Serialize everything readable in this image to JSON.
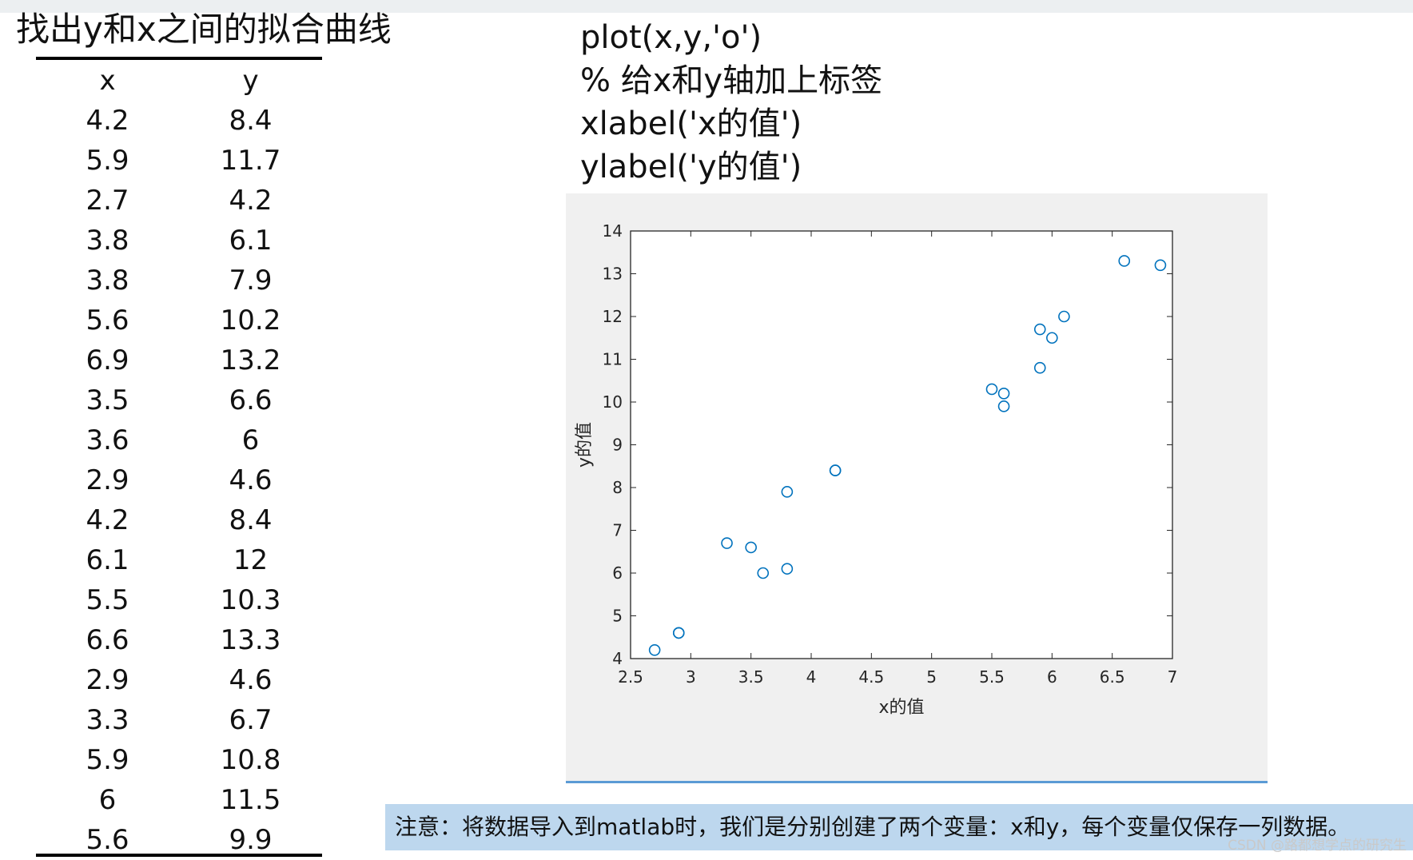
{
  "left": {
    "title": "找出y和x之间的拟合曲线",
    "headers": [
      "x",
      "y"
    ],
    "rows": [
      [
        "4.2",
        "8.4"
      ],
      [
        "5.9",
        "11.7"
      ],
      [
        "2.7",
        "4.2"
      ],
      [
        "3.8",
        "6.1"
      ],
      [
        "3.8",
        "7.9"
      ],
      [
        "5.6",
        "10.2"
      ],
      [
        "6.9",
        "13.2"
      ],
      [
        "3.5",
        "6.6"
      ],
      [
        "3.6",
        "6"
      ],
      [
        "2.9",
        "4.6"
      ],
      [
        "4.2",
        "8.4"
      ],
      [
        "6.1",
        "12"
      ],
      [
        "5.5",
        "10.3"
      ],
      [
        "6.6",
        "13.3"
      ],
      [
        "2.9",
        "4.6"
      ],
      [
        "3.3",
        "6.7"
      ],
      [
        "5.9",
        "10.8"
      ],
      [
        "6",
        "11.5"
      ],
      [
        "5.6",
        "9.9"
      ]
    ]
  },
  "code": {
    "lines": [
      "plot(x,y,'o')",
      "% 给x和y轴加上标签",
      "xlabel('x的值')",
      "ylabel('y的值')"
    ]
  },
  "note": {
    "text": "注意：将数据导入到matlab时，我们是分别创建了两个变量：x和y，每个变量仅保存一列数据。"
  },
  "watermark": "CSDN @路都想学点的研究生",
  "colors": {
    "marker": "#0072bd",
    "note_bg": "#bdd7ee",
    "figure_bg": "#f0f0f0",
    "underline": "#5b9bd5"
  },
  "chart_data": {
    "type": "scatter",
    "xlabel": "x的值",
    "ylabel": "y的值",
    "xlim": [
      2.5,
      7
    ],
    "ylim": [
      4,
      14
    ],
    "xticks": [
      2.5,
      3,
      3.5,
      4,
      4.5,
      5,
      5.5,
      6,
      6.5,
      7
    ],
    "yticks": [
      4,
      5,
      6,
      7,
      8,
      9,
      10,
      11,
      12,
      13,
      14
    ],
    "xtick_labels": [
      "2.5",
      "3",
      "3.5",
      "4",
      "4.5",
      "5",
      "5.5",
      "6",
      "6.5",
      "7"
    ],
    "ytick_labels": [
      "4",
      "5",
      "6",
      "7",
      "8",
      "9",
      "10",
      "11",
      "12",
      "13",
      "14"
    ],
    "marker": "o",
    "x": [
      4.2,
      5.9,
      2.7,
      3.8,
      3.8,
      5.6,
      6.9,
      3.5,
      3.6,
      2.9,
      4.2,
      6.1,
      5.5,
      6.6,
      2.9,
      3.3,
      5.9,
      6,
      5.6
    ],
    "y": [
      8.4,
      11.7,
      4.2,
      6.1,
      7.9,
      10.2,
      13.2,
      6.6,
      6,
      4.6,
      8.4,
      12,
      10.3,
      13.3,
      4.6,
      6.7,
      10.8,
      11.5,
      9.9
    ]
  }
}
